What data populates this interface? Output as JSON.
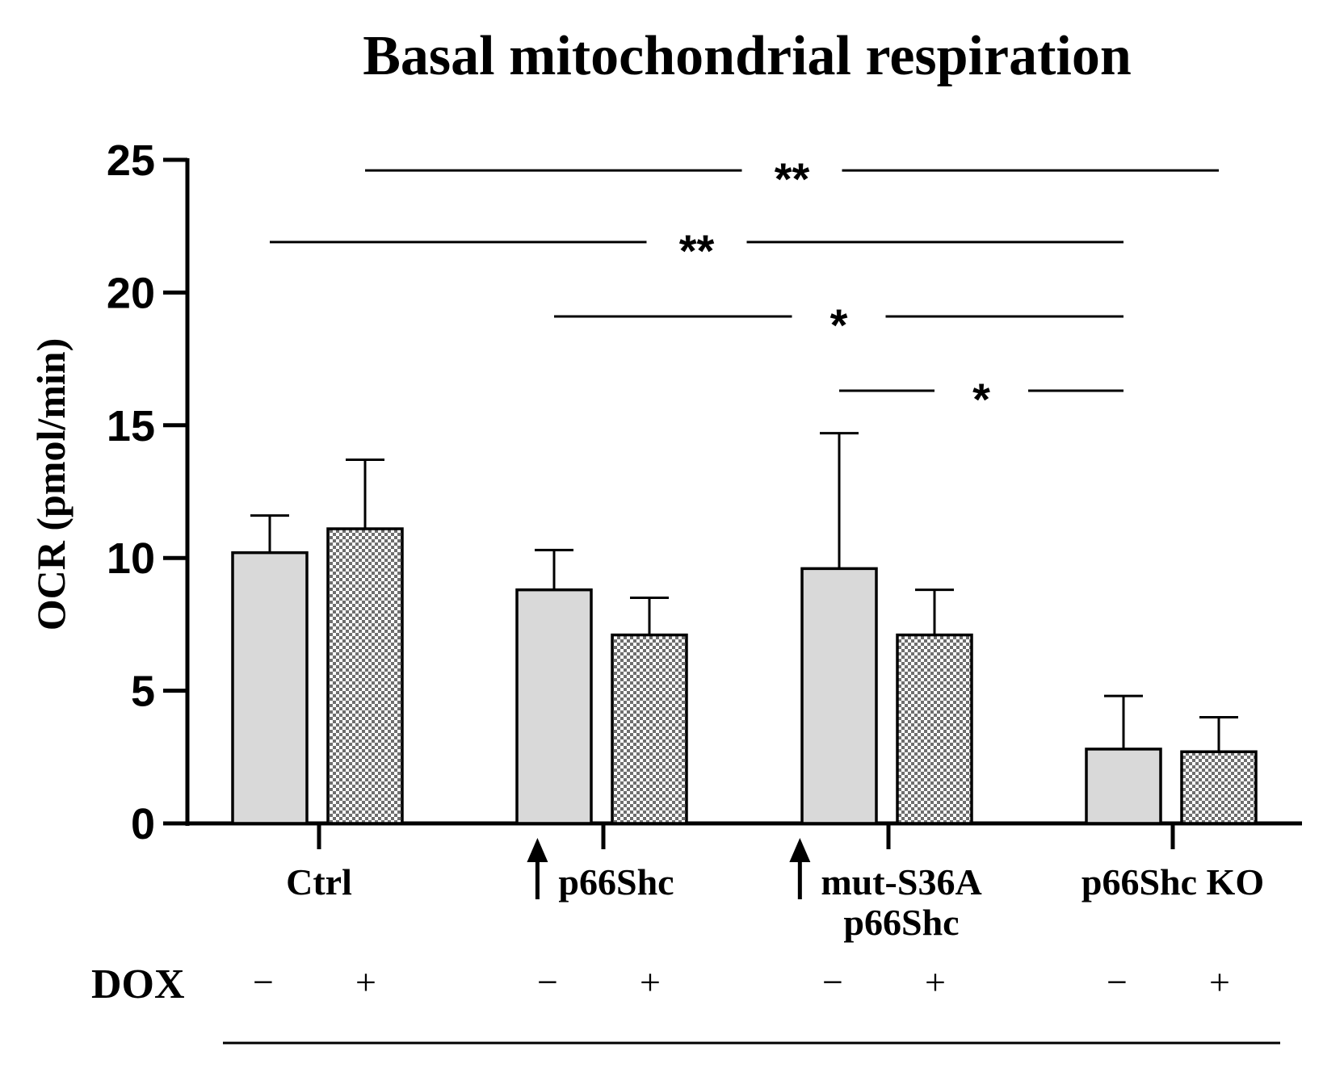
{
  "chart_data": {
    "type": "bar",
    "title": "Basal mitochondrial respiration",
    "ylabel": "OCR (pmol/min)",
    "xlabel": "",
    "ylim": [
      0,
      25
    ],
    "yticks": [
      0,
      5,
      10,
      15,
      20,
      25
    ],
    "ytick_labels": [
      "0",
      "5",
      "10",
      "15",
      "20",
      "25"
    ],
    "groups": [
      {
        "label_lines": [
          "Ctrl"
        ],
        "up_arrow": false
      },
      {
        "label_lines": [
          "p66Shc"
        ],
        "up_arrow": true
      },
      {
        "label_lines": [
          "mut-S36A",
          "p66Shc"
        ],
        "up_arrow": true
      },
      {
        "label_lines": [
          "p66Shc KO"
        ],
        "up_arrow": false
      }
    ],
    "series": [
      {
        "name": "DOX −",
        "sign": "−",
        "pattern": "solid",
        "color": "#d9d9d9",
        "values": [
          10.2,
          8.8,
          9.6,
          2.8
        ],
        "errors": [
          1.4,
          1.5,
          5.1,
          2.0
        ]
      },
      {
        "name": "DOX +",
        "sign": "+",
        "pattern": "checkered",
        "color": "#9a9a9a",
        "values": [
          11.1,
          7.1,
          7.1,
          2.7
        ],
        "errors": [
          2.6,
          1.4,
          1.7,
          1.3
        ]
      }
    ],
    "treatment_label": "DOX",
    "significance": [
      {
        "from_group": 0,
        "from_series": 1,
        "to_group": 3,
        "to_series": 1,
        "y": 24.6,
        "label": "**"
      },
      {
        "from_group": 0,
        "from_series": 0,
        "to_group": 3,
        "to_series": 0,
        "y": 21.9,
        "label": "**"
      },
      {
        "from_group": 1,
        "from_series": 0,
        "to_group": 3,
        "to_series": 0,
        "y": 19.1,
        "label": "*"
      },
      {
        "from_group": 2,
        "from_series": 0,
        "to_group": 3,
        "to_series": 0,
        "y": 16.3,
        "label": "*"
      }
    ]
  }
}
